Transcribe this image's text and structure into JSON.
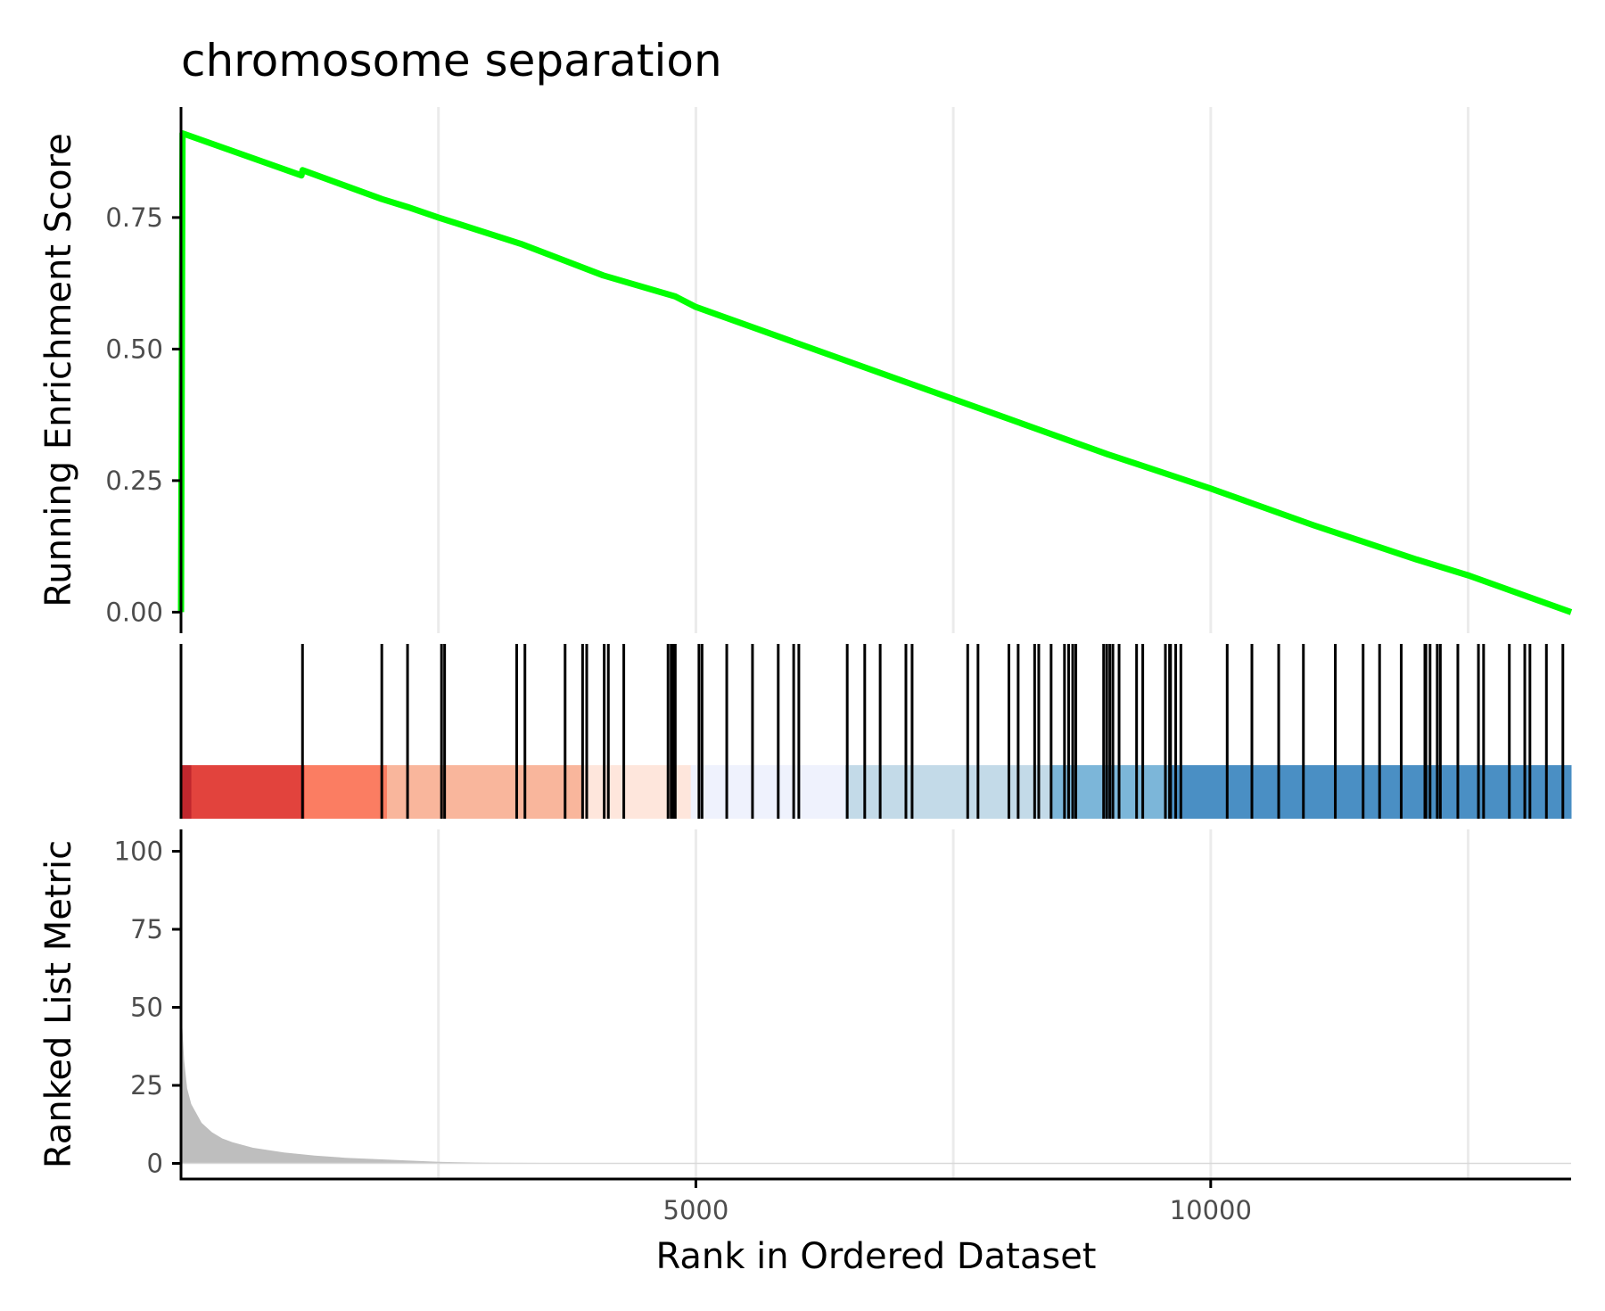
{
  "chart_data": {
    "type": "area",
    "title": "chromosome separation",
    "xlabel": "Rank in Ordered Dataset",
    "x_range": [
      0,
      13500
    ],
    "x_ticks": [
      5000,
      10000
    ],
    "x_tick_labels": [
      "5000",
      "10000"
    ],
    "grid_x": [
      2500,
      5000,
      7500,
      10000,
      12500
    ],
    "es_panel": {
      "ylabel": "Running Enrichment Score",
      "ylim": [
        -0.04,
        0.96
      ],
      "y_ticks": [
        0.0,
        0.25,
        0.5,
        0.75
      ],
      "y_tick_labels": [
        "0.00",
        "0.25",
        "0.50",
        "0.75"
      ],
      "curve_color": "#00ff00",
      "points": [
        [
          0,
          0.0
        ],
        [
          15,
          0.91
        ],
        [
          1170,
          0.83
        ],
        [
          1180,
          0.84
        ],
        [
          1950,
          0.785
        ],
        [
          2200,
          0.77
        ],
        [
          2500,
          0.75
        ],
        [
          3300,
          0.7
        ],
        [
          4100,
          0.64
        ],
        [
          4800,
          0.6
        ],
        [
          5000,
          0.58
        ],
        [
          6000,
          0.51
        ],
        [
          7000,
          0.44
        ],
        [
          8000,
          0.37
        ],
        [
          9000,
          0.3
        ],
        [
          10000,
          0.235
        ],
        [
          11000,
          0.165
        ],
        [
          12000,
          0.1
        ],
        [
          12500,
          0.07
        ],
        [
          13500,
          0.0
        ]
      ]
    },
    "hits_panel": {
      "hit_color": "#000000",
      "hit_ranks": [
        1180,
        1950,
        2200,
        2530,
        2560,
        3260,
        3340,
        3730,
        3900,
        3940,
        4110,
        4150,
        4300,
        4730,
        4760,
        4780,
        4800,
        5030,
        5060,
        5300,
        5550,
        5800,
        5950,
        6000,
        6470,
        6640,
        6790,
        7040,
        7100,
        7640,
        7740,
        8040,
        8130,
        8290,
        8330,
        8450,
        8580,
        8620,
        8660,
        8690,
        8960,
        8990,
        9020,
        9050,
        9110,
        9280,
        9340,
        9560,
        9600,
        9610,
        9660,
        9710,
        10160,
        10400,
        10660,
        10900,
        11210,
        11480,
        11640,
        11850,
        12080,
        12090,
        12130,
        12200,
        12230,
        12400,
        12600,
        12650,
        12900,
        13050,
        13100,
        13260,
        13420
      ],
      "color_bins": [
        {
          "from": 0,
          "to": 100,
          "color": "#c0272d"
        },
        {
          "from": 100,
          "to": 1200,
          "color": "#e2433d"
        },
        {
          "from": 1200,
          "to": 2000,
          "color": "#fb7d62"
        },
        {
          "from": 2000,
          "to": 3900,
          "color": "#f9b69c"
        },
        {
          "from": 3900,
          "to": 4950,
          "color": "#fee6dc"
        },
        {
          "from": 4950,
          "to": 6450,
          "color": "#eff2fd"
        },
        {
          "from": 6450,
          "to": 8450,
          "color": "#c3dae8"
        },
        {
          "from": 8450,
          "to": 9600,
          "color": "#7cb6d9"
        },
        {
          "from": 9600,
          "to": 13500,
          "color": "#4a8fc4"
        }
      ]
    },
    "metric_panel": {
      "ylabel": "Ranked List Metric",
      "ylim": [
        -5,
        107
      ],
      "y_ticks": [
        0,
        25,
        50,
        75,
        100
      ],
      "y_tick_labels": [
        "0",
        "25",
        "50",
        "75",
        "100"
      ],
      "fill_color": "#bebebe",
      "points": [
        [
          0,
          52
        ],
        [
          10,
          45
        ],
        [
          30,
          33
        ],
        [
          60,
          24
        ],
        [
          100,
          19
        ],
        [
          150,
          16
        ],
        [
          200,
          13
        ],
        [
          300,
          10
        ],
        [
          400,
          8
        ],
        [
          500,
          6.8
        ],
        [
          700,
          5
        ],
        [
          1000,
          3.5
        ],
        [
          1300,
          2.5
        ],
        [
          1600,
          1.8
        ],
        [
          2000,
          1.2
        ],
        [
          2500,
          0.5
        ],
        [
          3000,
          0.2
        ],
        [
          4000,
          0.05
        ],
        [
          6000,
          0
        ],
        [
          13500,
          0
        ]
      ]
    }
  }
}
